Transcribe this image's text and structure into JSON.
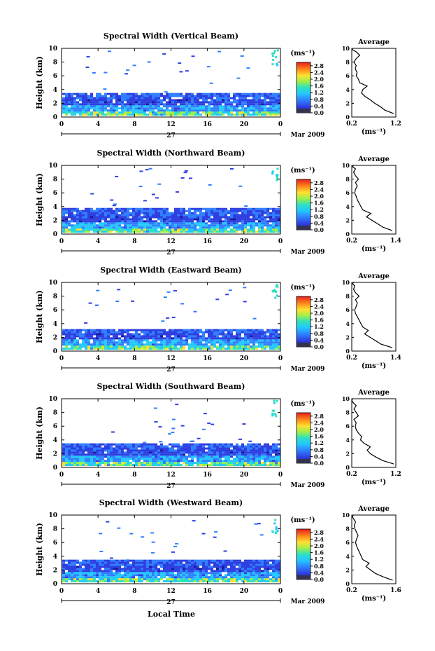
{
  "figure": {
    "xlabel": "Local Time",
    "date_label": "Mar 2009",
    "day_label": "27",
    "colorbar_unit": "(ms⁻¹)",
    "average_title": "Average",
    "average_unit": "(ms⁻¹)"
  },
  "chart_data": [
    {
      "type": "heatmap",
      "title": "Spectral Width (Vertical Beam)",
      "xlabel": "Local Time",
      "ylabel": "Height (km)",
      "xlim": [
        0,
        24
      ],
      "ylim": [
        0,
        10
      ],
      "xticks": [
        "0",
        "4",
        "8",
        "12",
        "16",
        "20",
        "0"
      ],
      "yticks": [
        "0",
        "2",
        "4",
        "6",
        "8",
        "10"
      ],
      "colorbar": {
        "unit": "(ms⁻¹)",
        "ticks": [
          "0.0",
          "0.4",
          "0.8",
          "1.2",
          "1.6",
          "2.0",
          "2.4",
          "2.8"
        ],
        "range": [
          0,
          3.0
        ]
      },
      "layer_top_km": 3.4,
      "average_profile": {
        "xlim": [
          0.2,
          1.2
        ],
        "xticks": [
          "0.2",
          "1.2"
        ],
        "ylim": [
          0,
          10
        ],
        "x": [
          1.15,
          0.95,
          0.85,
          0.72,
          0.62,
          0.5,
          0.42,
          0.45,
          0.55,
          0.38,
          0.35,
          0.3,
          0.32,
          0.28,
          0.3,
          0.25,
          0.3,
          0.38,
          0.3,
          0.22,
          0.2
        ],
        "y": [
          0.5,
          1.0,
          1.5,
          2.0,
          2.5,
          3.0,
          3.5,
          4.0,
          4.5,
          5.0,
          5.5,
          6.0,
          6.5,
          7.0,
          7.5,
          8.0,
          8.5,
          9.0,
          9.5,
          9.8,
          10.0
        ]
      }
    },
    {
      "type": "heatmap",
      "title": "Spectral Width (Northward Beam)",
      "xlabel": "Local Time",
      "ylabel": "Height (km)",
      "xlim": [
        0,
        24
      ],
      "ylim": [
        0,
        10
      ],
      "xticks": [
        "0",
        "4",
        "8",
        "12",
        "16",
        "20",
        "0"
      ],
      "yticks": [
        "0",
        "2",
        "4",
        "6",
        "8",
        "10"
      ],
      "colorbar": {
        "unit": "(ms⁻¹)",
        "ticks": [
          "0.0",
          "0.4",
          "0.8",
          "1.2",
          "1.6",
          "2.0",
          "2.4",
          "2.8"
        ],
        "range": [
          0,
          3.0
        ]
      },
      "layer_top_km": 3.5,
      "average_profile": {
        "xlim": [
          0.2,
          1.4
        ],
        "xticks": [
          "0.2",
          "1.4"
        ],
        "ylim": [
          0,
          10
        ],
        "x": [
          1.3,
          1.05,
          0.9,
          0.75,
          0.6,
          0.72,
          0.5,
          0.45,
          0.4,
          0.35,
          0.32,
          0.28,
          0.3,
          0.35,
          0.3,
          0.38,
          0.3,
          0.25,
          0.3,
          0.22,
          0.25
        ],
        "y": [
          0.5,
          1.0,
          1.5,
          2.0,
          2.5,
          3.0,
          3.5,
          4.0,
          4.5,
          5.0,
          5.5,
          6.0,
          6.5,
          7.0,
          7.5,
          8.0,
          8.5,
          9.0,
          9.5,
          9.8,
          10.0
        ]
      }
    },
    {
      "type": "heatmap",
      "title": "Spectral Width (Eastward Beam)",
      "xlabel": "Local Time",
      "ylabel": "Height (km)",
      "xlim": [
        0,
        24
      ],
      "ylim": [
        0,
        10
      ],
      "xticks": [
        "0",
        "4",
        "8",
        "12",
        "16",
        "20",
        "0"
      ],
      "yticks": [
        "0",
        "2",
        "4",
        "6",
        "8",
        "10"
      ],
      "colorbar": {
        "unit": "(ms⁻¹)",
        "ticks": [
          "0.0",
          "0.4",
          "0.8",
          "1.2",
          "1.6",
          "2.0",
          "2.4",
          "2.8"
        ],
        "range": [
          0,
          3.0
        ]
      },
      "layer_top_km": 3.1,
      "average_profile": {
        "xlim": [
          0.2,
          1.4
        ],
        "xticks": [
          "0.2",
          "1.4"
        ],
        "ylim": [
          0,
          10
        ],
        "x": [
          1.3,
          1.0,
          0.85,
          0.7,
          0.55,
          0.65,
          0.5,
          0.45,
          0.4,
          0.35,
          0.3,
          0.28,
          0.32,
          0.35,
          0.3,
          0.4,
          0.3,
          0.25,
          0.28,
          0.22,
          0.25
        ],
        "y": [
          0.5,
          1.0,
          1.5,
          2.0,
          2.5,
          3.0,
          3.5,
          4.0,
          4.5,
          5.0,
          5.5,
          6.0,
          6.5,
          7.0,
          7.5,
          8.0,
          8.5,
          9.0,
          9.5,
          9.8,
          10.0
        ]
      }
    },
    {
      "type": "heatmap",
      "title": "Spectral Width (Southward Beam)",
      "xlabel": "Local Time",
      "ylabel": "Height (km)",
      "xlim": [
        0,
        24
      ],
      "ylim": [
        0,
        10
      ],
      "xticks": [
        "0",
        "4",
        "8",
        "12",
        "16",
        "20",
        "0"
      ],
      "yticks": [
        "0",
        "2",
        "4",
        "6",
        "8",
        "10"
      ],
      "colorbar": {
        "unit": "(ms⁻¹)",
        "ticks": [
          "0.0",
          "0.4",
          "0.8",
          "1.2",
          "1.6",
          "2.0",
          "2.4",
          "2.8"
        ],
        "range": [
          0,
          3.0
        ]
      },
      "layer_top_km": 3.4,
      "average_profile": {
        "xlim": [
          0.2,
          1.2
        ],
        "xticks": [
          "0.2",
          "1.2"
        ],
        "ylim": [
          0,
          10
        ],
        "x": [
          1.15,
          0.9,
          0.75,
          0.62,
          0.55,
          0.62,
          0.48,
          0.4,
          0.42,
          0.35,
          0.3,
          0.28,
          0.3,
          0.25,
          0.35,
          0.3,
          0.25,
          0.3,
          0.22,
          0.2,
          0.22
        ],
        "y": [
          0.5,
          1.0,
          1.5,
          2.0,
          2.5,
          3.0,
          3.5,
          4.0,
          4.5,
          5.0,
          5.5,
          6.0,
          6.5,
          7.0,
          7.5,
          8.0,
          8.5,
          9.0,
          9.5,
          9.8,
          10.0
        ]
      }
    },
    {
      "type": "heatmap",
      "title": "Spectral Width (Westward Beam)",
      "xlabel": "Local Time",
      "ylabel": "Height (km)",
      "xlim": [
        0,
        24
      ],
      "ylim": [
        0,
        10
      ],
      "xticks": [
        "0",
        "4",
        "8",
        "12",
        "16",
        "20",
        "0"
      ],
      "yticks": [
        "0",
        "2",
        "4",
        "6",
        "8",
        "10"
      ],
      "colorbar": {
        "unit": "(ms⁻¹)",
        "ticks": [
          "0.0",
          "0.4",
          "0.8",
          "1.2",
          "1.6",
          "2.0",
          "2.4",
          "2.8"
        ],
        "range": [
          0,
          3.0
        ]
      },
      "layer_top_km": 3.2,
      "average_profile": {
        "xlim": [
          0.2,
          1.6
        ],
        "xticks": [
          "0.2",
          "1.6"
        ],
        "ylim": [
          0,
          10
        ],
        "x": [
          1.5,
          1.2,
          0.95,
          0.8,
          0.65,
          0.75,
          0.55,
          0.5,
          0.45,
          0.4,
          0.35,
          0.32,
          0.35,
          0.4,
          0.35,
          0.3,
          0.28,
          0.32,
          0.25,
          0.22,
          0.25
        ],
        "y": [
          0.5,
          1.0,
          1.5,
          2.0,
          2.5,
          3.0,
          3.5,
          4.0,
          4.5,
          5.0,
          5.5,
          6.0,
          6.5,
          7.0,
          7.5,
          8.0,
          8.5,
          9.0,
          9.5,
          9.8,
          10.0
        ]
      }
    }
  ]
}
